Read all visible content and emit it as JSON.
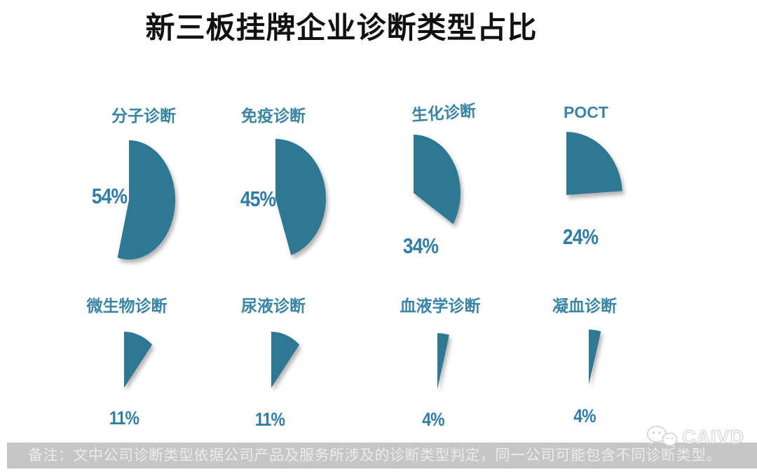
{
  "page": {
    "title": "新三板挂牌企业诊断类型占比"
  },
  "chart_data": {
    "type": "pie",
    "title": "新三板挂牌企业诊断类型占比",
    "unit": "%",
    "layout": "8 separate partial pie wedges, 4 per row; each wedge starts at 12 o'clock and sweeps clockwise by its percentage of a full circle",
    "series": [
      {
        "label": "分子诊断",
        "value": 54,
        "value_label": "54%"
      },
      {
        "label": "免疫诊断",
        "value": 45,
        "value_label": "45%"
      },
      {
        "label": "生化诊断",
        "value": 34,
        "value_label": "34%"
      },
      {
        "label": "POCT",
        "value": 24,
        "value_label": "24%"
      },
      {
        "label": "微生物诊断",
        "value": 11,
        "value_label": "11%"
      },
      {
        "label": "尿液诊断",
        "value": 11,
        "value_label": "11%"
      },
      {
        "label": "血液学诊断",
        "value": 4,
        "value_label": "4%"
      },
      {
        "label": "凝血诊断",
        "value": 4,
        "value_label": "4%"
      }
    ],
    "colors": {
      "wedge": "#2F7894",
      "label": "#3A84A4",
      "pct": "#2F7CA8",
      "title": "#111111",
      "footer_bg": "#C6C6C6",
      "footer_text": "#EBEBEB"
    }
  },
  "footer": {
    "note": "备注：文中公司诊断类型依据公司产品及服务所涉及的诊断类型判定，同一公司可能包含不同诊断类型。"
  },
  "watermark": {
    "icon": "wechat-icon",
    "text": "CAIVD"
  }
}
